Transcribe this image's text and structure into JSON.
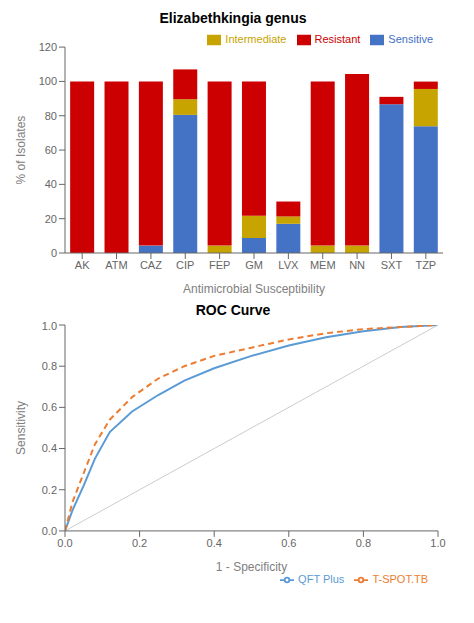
{
  "chart_data": [
    {
      "type": "bar",
      "title": "Elizabethkingia genus",
      "x_label": "Antimicrobial Susceptibility",
      "y_label": "% of Isolates",
      "categories": [
        "AK",
        "ATM",
        "CAZ",
        "CIP",
        "FEP",
        "GM",
        "LVX",
        "MEM",
        "NN",
        "SXT",
        "TZP"
      ],
      "stacked": true,
      "series": [
        {
          "name": "Sensitive",
          "color": "#4472C4",
          "values": [
            0,
            0,
            4.3,
            80.5,
            0,
            8.7,
            17.0,
            0,
            0,
            86.7,
            73.9
          ]
        },
        {
          "name": "Intermediate",
          "color": "#C8A400",
          "values": [
            0,
            0,
            0,
            9.1,
            4.3,
            13.0,
            4.3,
            4.3,
            4.3,
            0,
            21.7
          ]
        },
        {
          "name": "Resistant",
          "color": "#CC0000",
          "values": [
            100,
            100,
            95.7,
            17.4,
            95.7,
            78.3,
            8.7,
            95.7,
            100,
            4.3,
            4.3
          ]
        }
      ],
      "ylim": [
        0,
        120
      ],
      "yticks": [
        0,
        20,
        40,
        60,
        80,
        100,
        120
      ],
      "grid": false,
      "legend": "upper right"
    },
    {
      "type": "line",
      "title": "ROC Curve",
      "x_label": "1 - Specificity",
      "y_label": "Sensitivity",
      "series": [
        {
          "name": "QFT Plus",
          "color": "#5B9BD5",
          "line_style": "solid",
          "x": [
            0.0,
            0.02,
            0.05,
            0.08,
            0.12,
            0.18,
            0.25,
            0.32,
            0.4,
            0.5,
            0.6,
            0.7,
            0.8,
            0.9,
            1.0
          ],
          "values": [
            0.0,
            0.1,
            0.22,
            0.35,
            0.48,
            0.58,
            0.66,
            0.73,
            0.79,
            0.85,
            0.9,
            0.94,
            0.97,
            0.99,
            1.0
          ]
        },
        {
          "name": "T-SPOT.TB",
          "color": "#ED7D31",
          "line_style": "dashed",
          "x": [
            0.0,
            0.02,
            0.05,
            0.08,
            0.12,
            0.18,
            0.25,
            0.32,
            0.4,
            0.5,
            0.6,
            0.7,
            0.8,
            0.9,
            1.0
          ],
          "values": [
            0.0,
            0.14,
            0.28,
            0.42,
            0.54,
            0.65,
            0.74,
            0.8,
            0.85,
            0.89,
            0.93,
            0.96,
            0.98,
            0.99,
            1.0
          ]
        },
        {
          "color": "#cccccc",
          "line_style": "solid",
          "x": [
            0,
            1
          ],
          "values": [
            0,
            1
          ]
        }
      ],
      "xlim": [
        0,
        1
      ],
      "xticks": [
        {
          "value": 0,
          "label": "0.0"
        },
        0.2,
        0.4,
        0.6,
        0.8,
        {
          "value": 1,
          "label": "1.0"
        }
      ],
      "ylim": [
        0,
        1
      ],
      "yticks": [
        {
          "value": 0,
          "label": "0.0"
        },
        0.2,
        0.4,
        0.6,
        0.8,
        {
          "value": 1,
          "label": "1.0"
        }
      ],
      "grid": false,
      "legend": "lower right"
    }
  ]
}
